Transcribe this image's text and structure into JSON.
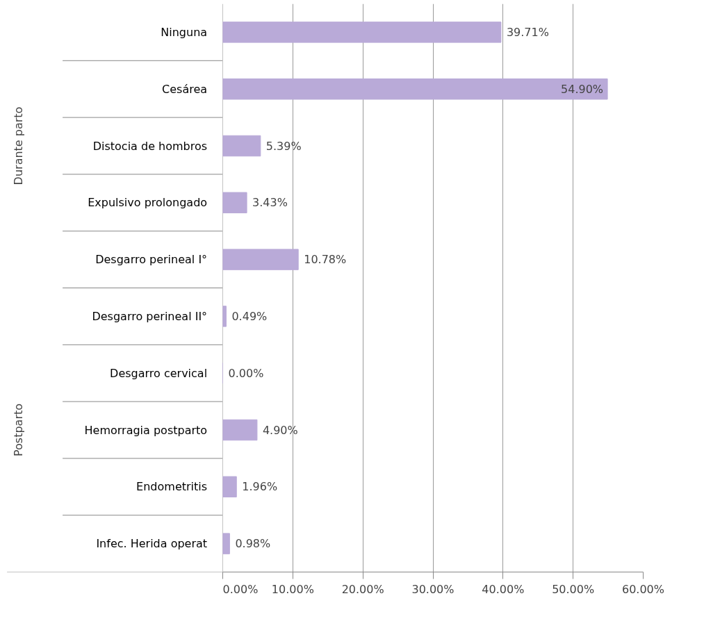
{
  "chart_data": {
    "type": "bar",
    "orientation": "horizontal",
    "categories": [
      "Ninguna",
      "Cesárea",
      "Distocia de hombros",
      "Expulsivo prolongado",
      "Desgarro perineal I°",
      "Desgarro perineal II°",
      "Desgarro cervical",
      "Hemorragia postparto",
      "Endometritis",
      "Infec. Herida operat"
    ],
    "values": [
      39.71,
      54.9,
      5.39,
      3.43,
      10.78,
      0.49,
      0.0,
      4.9,
      1.96,
      0.98
    ],
    "value_labels": [
      "39.71%",
      "54.90%",
      "5.39%",
      "3.43%",
      "10.78%",
      "0.49%",
      "0.00%",
      "4.90%",
      "1.96%",
      "0.98%"
    ],
    "color": "#b9aad8",
    "xlim": [
      0,
      60
    ],
    "xticks": [
      {
        "value": 0,
        "label": "0.00%"
      },
      {
        "value": 10,
        "label": "10.00%"
      },
      {
        "value": 20,
        "label": "20.00%"
      },
      {
        "value": 30,
        "label": "30.00%"
      },
      {
        "value": 40,
        "label": "40.00%"
      },
      {
        "value": 50,
        "label": "50.00%"
      },
      {
        "value": 60,
        "label": "60.00%"
      }
    ],
    "grid": "x",
    "annotations": [
      "Durante parto",
      "Postparto"
    ]
  }
}
